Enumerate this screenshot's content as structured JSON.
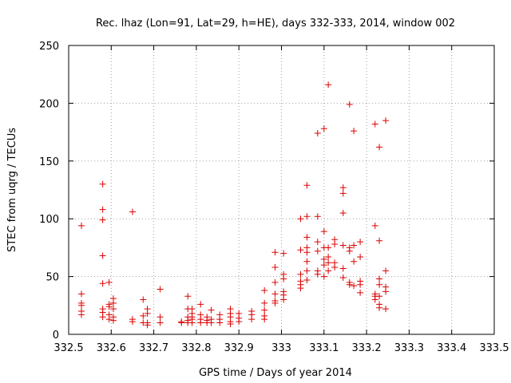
{
  "chart_data": {
    "type": "scatter",
    "title": "Rec. lhaz (Lon=91, Lat=29, h=HE), days 332-333, 2014, window 002",
    "xlabel": "GPS time / Days of year 2014",
    "ylabel": "STEC from uqrg / TECUs",
    "xlim": [
      332.5,
      333.5
    ],
    "ylim": [
      0,
      250
    ],
    "x_ticks": [
      332.5,
      332.6,
      332.7,
      332.8,
      332.9,
      333,
      333.1,
      333.2,
      333.3,
      333.4,
      333.5
    ],
    "x_tick_labels": [
      "332.5",
      "332.6",
      "332.7",
      "332.8",
      "332.9",
      "333",
      "333.1",
      "333.2",
      "333.3",
      "333.4",
      "333.5"
    ],
    "y_ticks": [
      0,
      50,
      100,
      150,
      200,
      250
    ],
    "y_tick_labels": [
      "0",
      "50",
      "100",
      "150",
      "200",
      "250"
    ],
    "grid": true,
    "marker": "+",
    "marker_color": "#dd0000",
    "points": [
      [
        332.53,
        94
      ],
      [
        332.53,
        35
      ],
      [
        332.53,
        27
      ],
      [
        332.53,
        25
      ],
      [
        332.53,
        20
      ],
      [
        332.53,
        17
      ],
      [
        332.58,
        130
      ],
      [
        332.58,
        108
      ],
      [
        332.58,
        99
      ],
      [
        332.58,
        68
      ],
      [
        332.58,
        44
      ],
      [
        332.58,
        22
      ],
      [
        332.58,
        19
      ],
      [
        332.58,
        15
      ],
      [
        332.595,
        45
      ],
      [
        332.595,
        26
      ],
      [
        332.595,
        24
      ],
      [
        332.595,
        17
      ],
      [
        332.595,
        13
      ],
      [
        332.605,
        31
      ],
      [
        332.605,
        27
      ],
      [
        332.605,
        22
      ],
      [
        332.605,
        15
      ],
      [
        332.605,
        12
      ],
      [
        332.65,
        106
      ],
      [
        332.65,
        13
      ],
      [
        332.65,
        11
      ],
      [
        332.675,
        30
      ],
      [
        332.675,
        16
      ],
      [
        332.675,
        10
      ],
      [
        332.685,
        22
      ],
      [
        332.685,
        18
      ],
      [
        332.685,
        10
      ],
      [
        332.685,
        8
      ],
      [
        332.715,
        39
      ],
      [
        332.715,
        15
      ],
      [
        332.715,
        10
      ],
      [
        332.765,
        11
      ],
      [
        332.765,
        10
      ],
      [
        332.78,
        33
      ],
      [
        332.78,
        22
      ],
      [
        332.78,
        15
      ],
      [
        332.78,
        12
      ],
      [
        332.78,
        10
      ],
      [
        332.79,
        22
      ],
      [
        332.79,
        18
      ],
      [
        332.79,
        15
      ],
      [
        332.79,
        13
      ],
      [
        332.79,
        10
      ],
      [
        332.81,
        26
      ],
      [
        332.81,
        17
      ],
      [
        332.81,
        13
      ],
      [
        332.81,
        10
      ],
      [
        332.825,
        15
      ],
      [
        332.825,
        12
      ],
      [
        332.825,
        10
      ],
      [
        332.835,
        21
      ],
      [
        332.835,
        13
      ],
      [
        332.835,
        10
      ],
      [
        332.855,
        17
      ],
      [
        332.855,
        13
      ],
      [
        332.855,
        10
      ],
      [
        332.88,
        22
      ],
      [
        332.88,
        18
      ],
      [
        332.88,
        15
      ],
      [
        332.88,
        11
      ],
      [
        332.88,
        9
      ],
      [
        332.9,
        18
      ],
      [
        332.9,
        14
      ],
      [
        332.9,
        11
      ],
      [
        332.93,
        20
      ],
      [
        332.93,
        17
      ],
      [
        332.93,
        13
      ],
      [
        332.96,
        38
      ],
      [
        332.96,
        27
      ],
      [
        332.96,
        21
      ],
      [
        332.96,
        16
      ],
      [
        332.96,
        13
      ],
      [
        332.985,
        71
      ],
      [
        332.985,
        58
      ],
      [
        332.985,
        45
      ],
      [
        332.985,
        35
      ],
      [
        332.985,
        29
      ],
      [
        332.985,
        27
      ],
      [
        333.005,
        70
      ],
      [
        333.005,
        52
      ],
      [
        333.005,
        48
      ],
      [
        333.005,
        37
      ],
      [
        333.005,
        34
      ],
      [
        333.005,
        30
      ],
      [
        333.045,
        100
      ],
      [
        333.045,
        73
      ],
      [
        333.045,
        52
      ],
      [
        333.045,
        46
      ],
      [
        333.045,
        43
      ],
      [
        333.045,
        40
      ],
      [
        333.06,
        129
      ],
      [
        333.06,
        102
      ],
      [
        333.06,
        84
      ],
      [
        333.06,
        75
      ],
      [
        333.06,
        71
      ],
      [
        333.06,
        63
      ],
      [
        333.06,
        55
      ],
      [
        333.06,
        47
      ],
      [
        333.085,
        174
      ],
      [
        333.085,
        102
      ],
      [
        333.085,
        80
      ],
      [
        333.085,
        72
      ],
      [
        333.085,
        55
      ],
      [
        333.085,
        52
      ],
      [
        333.1,
        178
      ],
      [
        333.1,
        89
      ],
      [
        333.1,
        75
      ],
      [
        333.1,
        65
      ],
      [
        333.1,
        60
      ],
      [
        333.1,
        50
      ],
      [
        333.11,
        216
      ],
      [
        333.11,
        75
      ],
      [
        333.11,
        67
      ],
      [
        333.11,
        62
      ],
      [
        333.11,
        55
      ],
      [
        333.125,
        82
      ],
      [
        333.125,
        78
      ],
      [
        333.125,
        62
      ],
      [
        333.125,
        58
      ],
      [
        333.145,
        127
      ],
      [
        333.145,
        122
      ],
      [
        333.145,
        105
      ],
      [
        333.145,
        77
      ],
      [
        333.145,
        57
      ],
      [
        333.145,
        49
      ],
      [
        333.16,
        199
      ],
      [
        333.16,
        75
      ],
      [
        333.16,
        72
      ],
      [
        333.16,
        45
      ],
      [
        333.16,
        43
      ],
      [
        333.17,
        176
      ],
      [
        333.17,
        77
      ],
      [
        333.17,
        63
      ],
      [
        333.17,
        42
      ],
      [
        333.185,
        80
      ],
      [
        333.185,
        67
      ],
      [
        333.185,
        46
      ],
      [
        333.185,
        43
      ],
      [
        333.185,
        36
      ],
      [
        333.22,
        182
      ],
      [
        333.22,
        94
      ],
      [
        333.22,
        35
      ],
      [
        333.22,
        33
      ],
      [
        333.22,
        30
      ],
      [
        333.23,
        162
      ],
      [
        333.23,
        81
      ],
      [
        333.23,
        48
      ],
      [
        333.23,
        43
      ],
      [
        333.23,
        33
      ],
      [
        333.23,
        26
      ],
      [
        333.23,
        23
      ],
      [
        333.245,
        185
      ],
      [
        333.245,
        55
      ],
      [
        333.245,
        41
      ],
      [
        333.245,
        37
      ],
      [
        333.245,
        22
      ]
    ]
  }
}
